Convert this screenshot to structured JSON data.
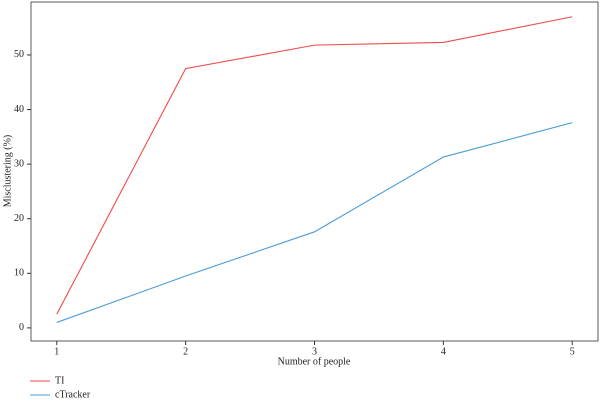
{
  "chart_data": {
    "type": "line",
    "x_label": "Number of people",
    "y_label": "Misclustering (%)",
    "x": [
      1,
      2,
      3,
      4,
      5
    ],
    "series": [
      {
        "name": "TI",
        "color": "#f04a4b",
        "values": [
          2.5,
          47.5,
          51.8,
          52.3,
          57.0
        ]
      },
      {
        "name": "cTracker",
        "color": "#4a9dd4",
        "values": [
          1.0,
          9.5,
          17.6,
          31.3,
          37.6
        ]
      }
    ],
    "xlim": [
      0.8,
      5.2
    ],
    "xticks": [
      1,
      2,
      3,
      4,
      5
    ],
    "ylim": [
      -2.4,
      59.7
    ],
    "yticks": [
      0,
      10,
      20,
      30,
      40,
      50
    ],
    "legend": "bottom-left"
  }
}
